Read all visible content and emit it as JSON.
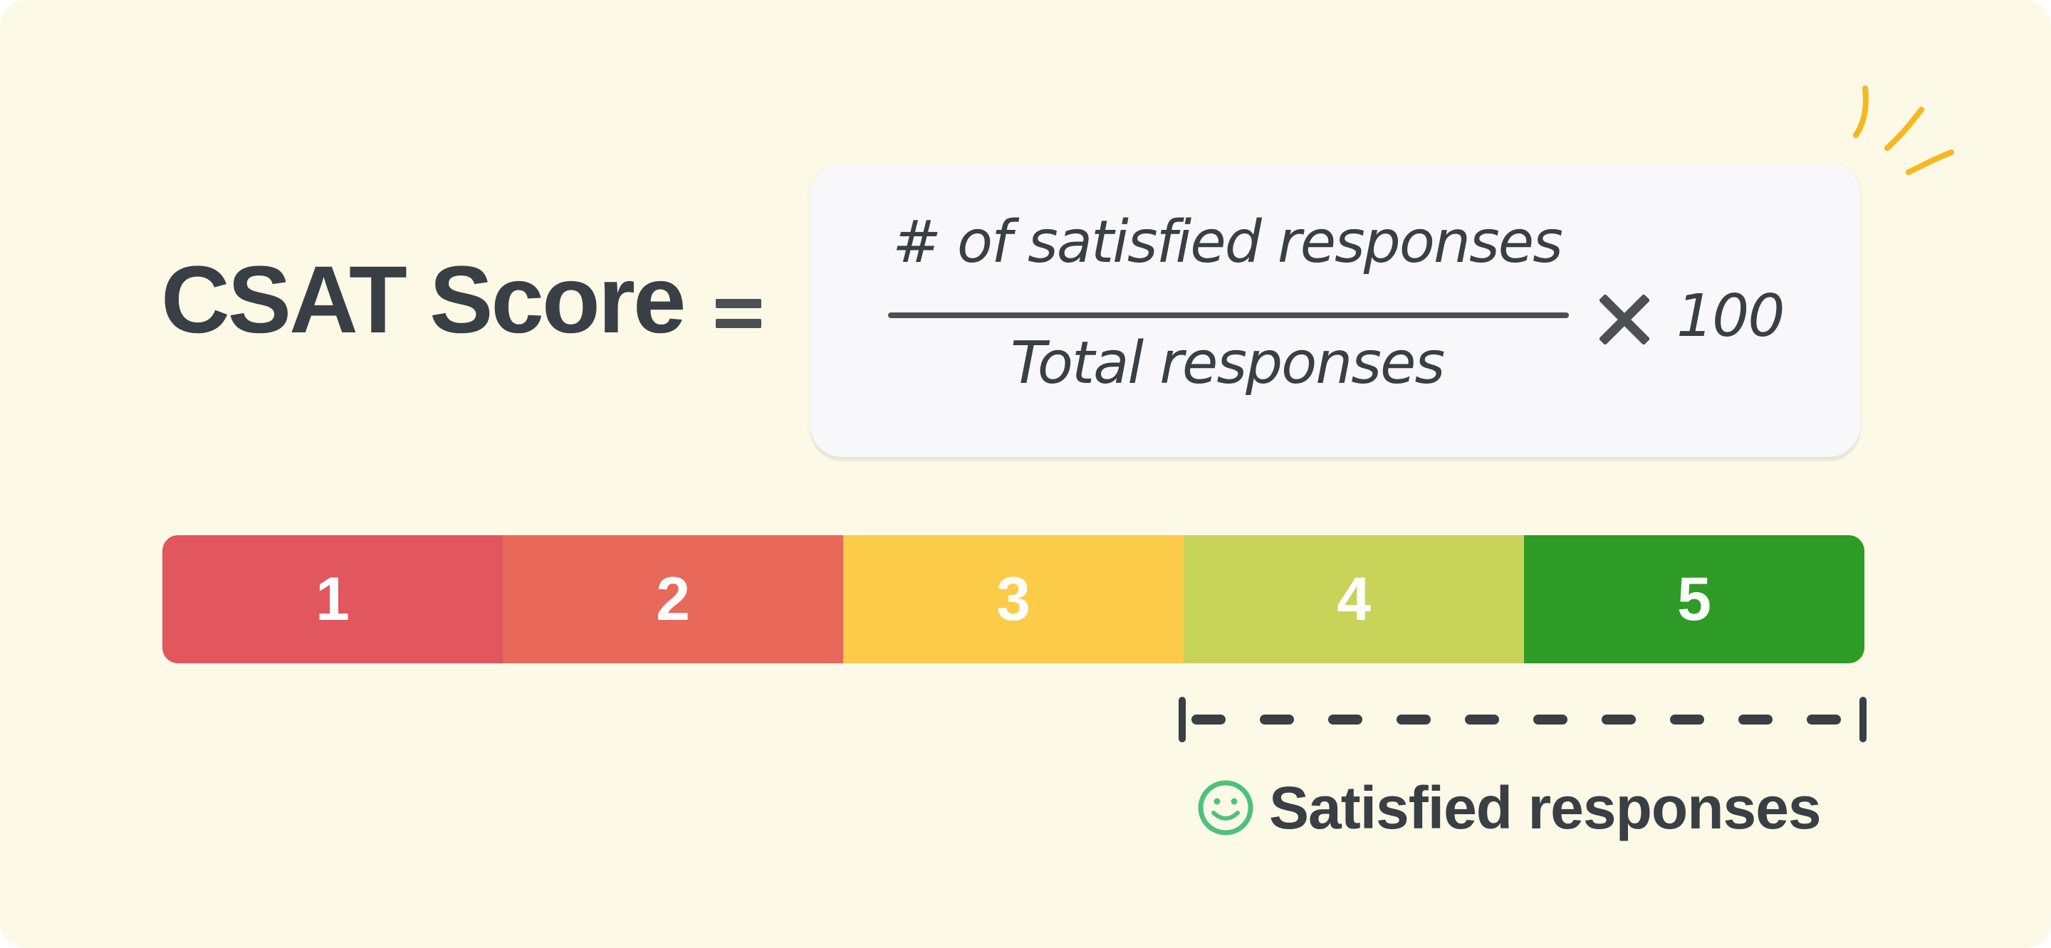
{
  "title": "CSAT Score",
  "formula": {
    "numerator": "# of satisfied responses",
    "denominator": "Total responses",
    "multiplier": "100",
    "operator_icon": "times-icon",
    "equals_icon": "equals-icon"
  },
  "scale": [
    {
      "label": "1",
      "color": "#e2565e"
    },
    {
      "label": "2",
      "color": "#e8685a"
    },
    {
      "label": "3",
      "color": "#fccb48"
    },
    {
      "label": "4",
      "color": "#c8d35a"
    },
    {
      "label": "5",
      "color": "#2e9c26"
    }
  ],
  "legend": {
    "label": "Satisfied responses",
    "icon": "smiley-icon",
    "icon_color": "#4cc27a"
  },
  "colors": {
    "background": "#fdf9e7",
    "text": "#383f45",
    "box": "#f8f8fa",
    "accent": "#f5b820"
  }
}
